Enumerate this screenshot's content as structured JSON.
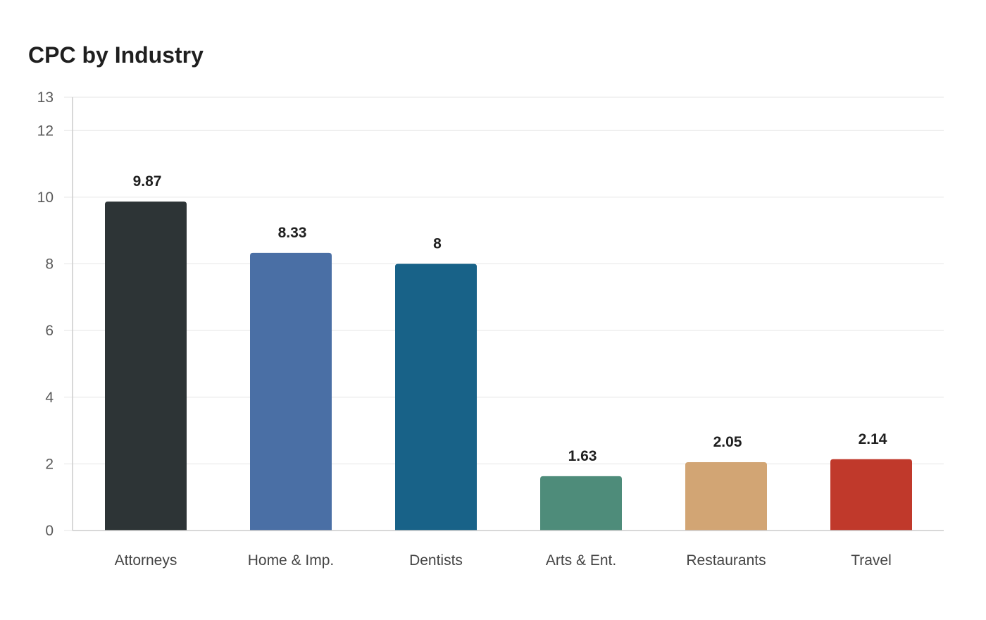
{
  "chart_data": {
    "type": "bar",
    "title": "CPC by Industry",
    "xlabel": "",
    "ylabel": "",
    "categories": [
      "Attorneys",
      "Home & Imp.",
      "Dentists",
      "Arts & Ent.",
      "Restaurants",
      "Travel"
    ],
    "values": [
      9.87,
      8.33,
      8,
      1.63,
      2.05,
      2.14
    ],
    "value_labels": [
      "9.87",
      "8.33",
      "8",
      "1.63",
      "2.05",
      "2.14"
    ],
    "colors": [
      "#2d3436",
      "#4a6fa5",
      "#186288",
      "#4e8c7a",
      "#d2a574",
      "#c0392b"
    ],
    "ylim": [
      0,
      13
    ],
    "yticks": [
      0,
      2,
      4,
      6,
      8,
      10,
      12,
      13
    ],
    "grid": true,
    "legend": "none"
  }
}
